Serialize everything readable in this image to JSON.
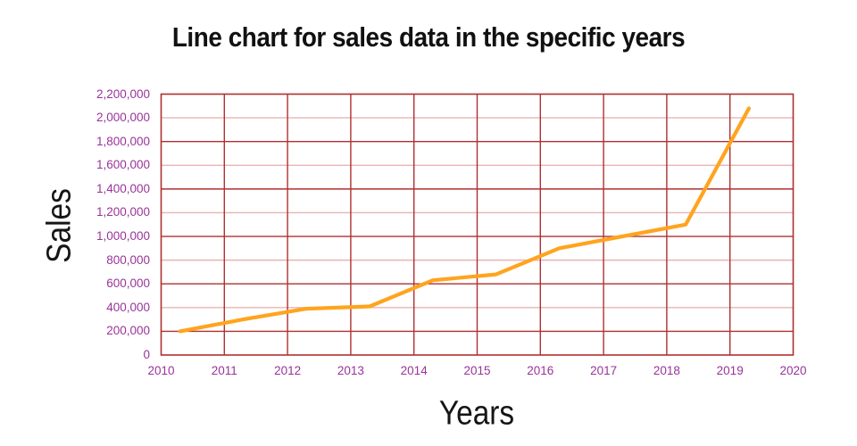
{
  "title": "Line chart for sales data in the specific years",
  "chart_data": {
    "type": "line",
    "title": "Line chart for sales data in the specific years",
    "xlabel": "Years",
    "ylabel": "Sales",
    "x": [
      2010,
      2011,
      2012,
      2013,
      2014,
      2015,
      2016,
      2017,
      2018,
      2019
    ],
    "series": [
      {
        "name": "sales",
        "values": [
          200000,
          300000,
          390000,
          410000,
          630000,
          680000,
          900000,
          1000000,
          1100000,
          2080000
        ]
      }
    ],
    "x_point_offset": 0.3,
    "xlim": [
      2010,
      2020
    ],
    "ylim": [
      0,
      2200000
    ],
    "grid": true,
    "legend": false,
    "x_ticks": [
      {
        "label": "2010",
        "value": 2010
      },
      {
        "label": "2011",
        "value": 2011
      },
      {
        "label": "2012",
        "value": 2012
      },
      {
        "label": "2013",
        "value": 2013
      },
      {
        "label": "2014",
        "value": 2014
      },
      {
        "label": "2015",
        "value": 2015
      },
      {
        "label": "2016",
        "value": 2016
      },
      {
        "label": "2017",
        "value": 2017
      },
      {
        "label": "2018",
        "value": 2018
      },
      {
        "label": "2019",
        "value": 2019
      },
      {
        "label": "2020",
        "value": 2020
      }
    ],
    "y_ticks": [
      {
        "label": "0",
        "value": 0
      },
      {
        "label": "200,000",
        "value": 200000
      },
      {
        "label": "400,000",
        "value": 400000
      },
      {
        "label": "600,000",
        "value": 600000
      },
      {
        "label": "800,000",
        "value": 800000
      },
      {
        "label": "1,000,000",
        "value": 1000000
      },
      {
        "label": "1,200,000",
        "value": 1200000
      },
      {
        "label": "1,400,000",
        "value": 1400000
      },
      {
        "label": "1,600,000",
        "value": 1600000
      },
      {
        "label": "1,800,000",
        "value": 1800000
      },
      {
        "label": "2,000,000",
        "value": 2000000
      },
      {
        "label": "2,200,000",
        "value": 2200000
      }
    ],
    "colors": {
      "line": "#FFA41E",
      "grid_major": "#B03030",
      "grid_minor": "#E9B3B3",
      "tick_label": "#993399",
      "text": "#111111"
    }
  }
}
